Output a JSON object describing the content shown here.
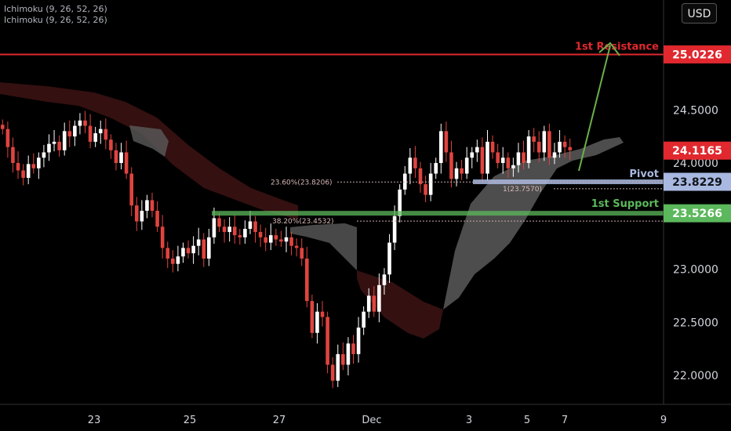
{
  "indicators": [
    "Ichimoku (9, 26, 52, 26)",
    "Ichimoku (9, 26, 52, 26)"
  ],
  "currency": "USD",
  "colors": {
    "background": "#000000",
    "candle_up": "#ffffff",
    "candle_down": "#e0443f",
    "resistance": "#e0282e",
    "pivot": "#a8b8e0",
    "support": "#5cb85c",
    "arrow": "#6ab04c",
    "cloud_bull": "#5a5a5a",
    "cloud_bear": "#3a1212"
  },
  "chart_data": {
    "type": "candlestick",
    "ylim": [
      21.85,
      25.25
    ],
    "y_ticks": [
      "24.5000",
      "24.0000",
      "23.0000",
      "22.5000",
      "22.0000"
    ],
    "x_ticks": [
      "23",
      "25",
      "27",
      "Dec",
      "3",
      "5",
      "7",
      "9"
    ],
    "levels": [
      {
        "name": "1st Resistance",
        "value": 25.0226,
        "label": "25.0226"
      },
      {
        "name": "Pivot",
        "value": 23.8229,
        "label": "23.8229"
      },
      {
        "name": "1st Support",
        "value": 23.5266,
        "label": "23.5266"
      }
    ],
    "last_price": {
      "value": 24.1165,
      "label": "24.1165"
    },
    "fib_levels": [
      {
        "label": "23.60%(23.8206)",
        "value": 23.8206
      },
      {
        "label": "1(23.7570)",
        "value": 23.757
      },
      {
        "label": "38.20%(23.4532)",
        "value": 23.4532
      }
    ],
    "close": [
      24.32,
      24.15,
      24.0,
      23.93,
      23.86,
      23.99,
      23.95,
      24.05,
      24.1,
      24.18,
      24.2,
      24.12,
      24.3,
      24.25,
      24.35,
      24.4,
      24.35,
      24.2,
      24.28,
      24.32,
      24.22,
      24.12,
      24.0,
      24.1,
      23.9,
      23.6,
      23.45,
      23.55,
      23.65,
      23.55,
      23.4,
      23.2,
      23.1,
      23.05,
      23.12,
      23.2,
      23.15,
      23.22,
      23.28,
      23.1,
      23.3,
      23.48,
      23.4,
      23.35,
      23.4,
      23.32,
      23.3,
      23.38,
      23.45,
      23.35,
      23.3,
      23.25,
      23.32,
      23.28,
      23.26,
      23.3,
      23.22,
      23.2,
      23.1,
      22.7,
      22.4,
      22.6,
      22.55,
      22.1,
      21.95,
      22.2,
      22.1,
      22.3,
      22.2,
      22.45,
      22.6,
      22.75,
      22.6,
      22.85,
      22.95,
      23.25,
      23.5,
      23.75,
      23.9,
      24.05,
      23.95,
      23.8,
      23.7,
      23.9,
      24.0,
      24.3,
      24.1,
      23.85,
      23.95,
      23.9,
      24.05,
      24.1,
      24.15,
      23.9,
      24.2,
      24.1,
      24.0,
      24.05,
      23.95,
      23.98,
      24.1,
      24.0,
      24.25,
      24.2,
      24.1,
      24.3,
      24.05,
      24.1,
      24.2,
      24.15,
      24.12
    ]
  },
  "annotations": {
    "resistance_label": "1st Resistance",
    "pivot_label": "Pivot",
    "support_label": "1st Support"
  }
}
